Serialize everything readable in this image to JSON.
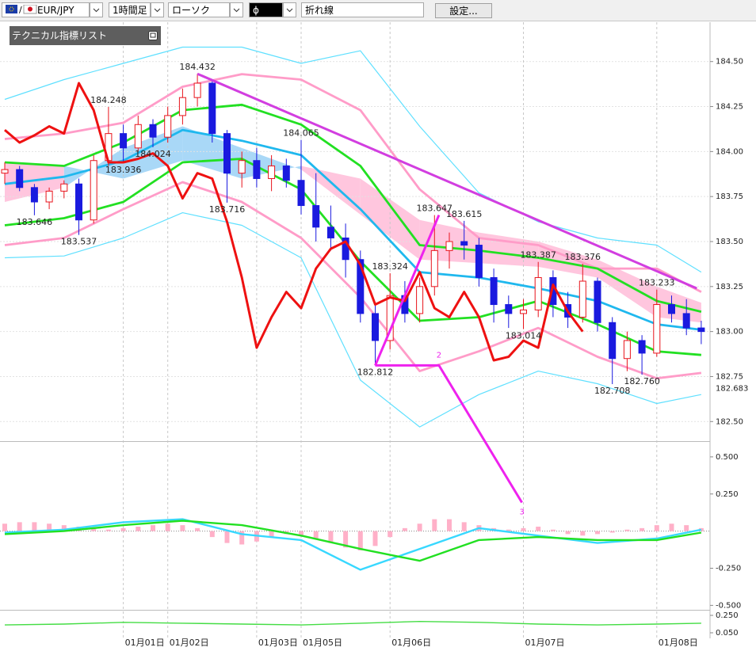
{
  "toolbar": {
    "symbol": "EUR/JPY",
    "timeframe": "1時間足",
    "chart_type": "ローソク",
    "drawing_tool": "ϕ",
    "line_type": "折れ線",
    "settings_button": "設定..."
  },
  "indicator_panel": {
    "title": "テクニカル指標リスト"
  },
  "chart_data": [
    {
      "type": "candlestick",
      "categories": [
        null,
        null,
        null,
        null,
        null,
        null,
        null,
        null,
        "01月01日",
        null,
        null,
        "01月02日",
        null,
        null,
        null,
        null,
        null,
        "01月03日",
        null,
        null,
        "01月05日",
        null,
        null,
        null,
        null,
        null,
        "01月06日",
        null,
        null,
        null,
        null,
        null,
        null,
        null,
        null,
        "01月07日",
        null,
        null,
        null,
        null,
        null,
        null,
        null,
        null,
        "01月08日",
        null,
        null,
        null
      ],
      "candles": [
        [
          183.88,
          183.94,
          183.82,
          183.9
        ],
        [
          183.9,
          183.92,
          183.78,
          183.8
        ],
        [
          183.8,
          183.82,
          183.646,
          183.72
        ],
        [
          183.72,
          183.8,
          183.68,
          183.78
        ],
        [
          183.78,
          183.84,
          183.74,
          183.82
        ],
        [
          183.82,
          183.85,
          183.537,
          183.62
        ],
        [
          183.62,
          183.98,
          183.6,
          183.95
        ],
        [
          183.95,
          184.248,
          183.92,
          184.1
        ],
        [
          184.1,
          184.15,
          183.936,
          184.02
        ],
        [
          184.02,
          184.2,
          184.0,
          184.15
        ],
        [
          184.15,
          184.18,
          184.024,
          184.08
        ],
        [
          184.08,
          184.25,
          184.05,
          184.2
        ],
        [
          184.2,
          184.35,
          184.15,
          184.3
        ],
        [
          184.3,
          184.432,
          184.25,
          184.38
        ],
        [
          184.38,
          184.4,
          184.05,
          184.1
        ],
        [
          184.1,
          184.12,
          183.716,
          183.88
        ],
        [
          183.88,
          184.0,
          183.8,
          183.95
        ],
        [
          183.95,
          184.02,
          183.8,
          183.85
        ],
        [
          183.85,
          183.98,
          183.78,
          183.92
        ],
        [
          183.92,
          183.96,
          183.8,
          183.84
        ],
        [
          183.84,
          184.065,
          183.65,
          183.7
        ],
        [
          183.7,
          183.88,
          183.5,
          183.58
        ],
        [
          183.58,
          183.7,
          183.45,
          183.52
        ],
        [
          183.52,
          183.6,
          183.3,
          183.4
        ],
        [
          183.4,
          183.45,
          183.05,
          183.1
        ],
        [
          183.1,
          183.15,
          182.812,
          182.95
        ],
        [
          182.95,
          183.324,
          182.9,
          183.2
        ],
        [
          183.2,
          183.28,
          183.05,
          183.1
        ],
        [
          183.1,
          183.3,
          183.05,
          183.25
        ],
        [
          183.25,
          183.647,
          183.2,
          183.45
        ],
        [
          183.45,
          183.55,
          183.35,
          183.5
        ],
        [
          183.5,
          183.615,
          183.4,
          183.48
        ],
        [
          183.48,
          183.52,
          183.25,
          183.3
        ],
        [
          183.3,
          183.35,
          183.05,
          183.15
        ],
        [
          183.15,
          183.2,
          183.02,
          183.1
        ],
        [
          183.1,
          183.18,
          183.014,
          183.12
        ],
        [
          183.12,
          183.387,
          183.08,
          183.3
        ],
        [
          183.3,
          183.34,
          183.08,
          183.15
        ],
        [
          183.15,
          183.22,
          183.02,
          183.08
        ],
        [
          183.08,
          183.376,
          183.05,
          183.28
        ],
        [
          183.28,
          183.3,
          183.0,
          183.05
        ],
        [
          183.05,
          183.08,
          182.708,
          182.85
        ],
        [
          182.85,
          183.0,
          182.78,
          182.95
        ],
        [
          182.95,
          182.98,
          182.76,
          182.88
        ],
        [
          182.88,
          183.233,
          182.86,
          183.15
        ],
        [
          183.15,
          183.2,
          183.05,
          183.1
        ],
        [
          183.1,
          183.18,
          182.98,
          183.02
        ],
        [
          183.02,
          183.06,
          182.93,
          183.0
        ]
      ],
      "up_color": "#e8141c",
      "down_color": "#1a1adf",
      "ylim": [
        182.4,
        184.71
      ],
      "yticks": [
        {
          "value": 184.5,
          "label": "184.50"
        },
        {
          "value": 184.25,
          "label": "184.25"
        },
        {
          "value": 184,
          "label": "184.00"
        },
        {
          "value": 183.75,
          "label": "183.75"
        },
        {
          "value": 183.5,
          "label": "183.50"
        },
        {
          "value": 183.25,
          "label": "183.25"
        },
        {
          "value": 183,
          "label": "183.00"
        },
        {
          "value": 182.75,
          "label": "182.75"
        },
        {
          "value": 182.5,
          "label": "182.50"
        }
      ],
      "price_marker": 182.683,
      "grid": true,
      "cloud": {
        "x": [
          0,
          4,
          8,
          12,
          16,
          20,
          24,
          28,
          32,
          36,
          40,
          44,
          47
        ],
        "span_a": [
          183.72,
          183.8,
          184.02,
          184.14,
          184.02,
          183.9,
          183.65,
          183.4,
          183.38,
          183.36,
          183.3,
          183.08,
          183.05
        ],
        "span_b": [
          183.94,
          183.92,
          183.85,
          183.95,
          183.85,
          183.92,
          183.85,
          183.62,
          183.55,
          183.5,
          183.4,
          183.25,
          183.16
        ],
        "colors": [
          "#a9d8f7",
          "#ffc6de"
        ]
      },
      "overlays": [
        {
          "color": "#5fe0ff",
          "x": [
            0,
            4,
            8,
            12,
            16,
            20,
            24,
            28,
            32,
            36,
            40,
            44,
            47
          ],
          "values": [
            184.29,
            184.4,
            184.49,
            184.58,
            184.58,
            184.49,
            184.56,
            184.14,
            183.77,
            183.61,
            183.52,
            183.48,
            183.33
          ]
        },
        {
          "color": "#ff9cc8",
          "x": [
            0,
            4,
            8,
            12,
            16,
            20,
            24,
            28,
            32,
            36,
            40,
            44,
            47
          ],
          "values": [
            184.07,
            184.1,
            184.16,
            184.36,
            184.43,
            184.4,
            184.23,
            183.79,
            183.52,
            183.48,
            183.35,
            183.35,
            183.22
          ]
        },
        {
          "color": "#22e022",
          "x": [
            0,
            4,
            8,
            12,
            16,
            20,
            24,
            28,
            32,
            36,
            40,
            44,
            47
          ],
          "values": [
            183.94,
            183.92,
            184.05,
            184.23,
            184.26,
            184.15,
            183.92,
            183.48,
            183.45,
            183.41,
            183.35,
            183.17,
            183.11
          ]
        },
        {
          "color": "#1fb8ee",
          "x": [
            0,
            4,
            8,
            12,
            16,
            20,
            24,
            28,
            32,
            36,
            40,
            44,
            47
          ],
          "values": [
            183.82,
            183.86,
            183.95,
            184.12,
            184.06,
            183.98,
            183.68,
            183.33,
            183.3,
            183.24,
            183.17,
            183.04,
            183.01
          ]
        },
        {
          "color": "#22e022",
          "x": [
            0,
            4,
            8,
            12,
            16,
            20,
            24,
            28,
            32,
            36,
            40,
            44,
            47
          ],
          "values": [
            183.59,
            183.63,
            183.72,
            183.94,
            183.96,
            183.79,
            183.39,
            183.06,
            183.08,
            183.17,
            183.04,
            182.89,
            182.87
          ]
        },
        {
          "color": "#ff9cc8",
          "x": [
            0,
            4,
            8,
            12,
            16,
            20,
            24,
            28,
            32,
            36,
            40,
            44,
            47
          ],
          "values": [
            183.48,
            183.52,
            183.68,
            183.83,
            183.72,
            183.52,
            183.19,
            182.78,
            182.89,
            183.02,
            182.86,
            182.74,
            182.77
          ]
        },
        {
          "color": "#5fe0ff",
          "x": [
            0,
            4,
            8,
            12,
            16,
            20,
            24,
            28,
            32,
            36,
            40,
            44,
            47
          ],
          "values": [
            183.41,
            183.42,
            183.52,
            183.66,
            183.59,
            183.41,
            182.73,
            182.47,
            182.65,
            182.78,
            182.71,
            182.6,
            182.65
          ]
        }
      ],
      "lagging_line": {
        "color": "#ee1111",
        "values": [
          184.12,
          184.05,
          184.09,
          184.14,
          184.1,
          184.38,
          184.23,
          183.94,
          183.94,
          183.96,
          183.99,
          183.92,
          183.74,
          183.88,
          183.85,
          183.61,
          183.3,
          182.91,
          183.08,
          183.22,
          183.13,
          183.35,
          183.46,
          183.5,
          183.37,
          183.15,
          183.19,
          183.17,
          183.33,
          183.13,
          183.08,
          183.22,
          183.08,
          182.84,
          182.86,
          182.95,
          182.91,
          183.26,
          183.11,
          183.0,
          null,
          null,
          null,
          null,
          null,
          null,
          null,
          null
        ]
      },
      "annotations": [
        {
          "value": 184.432,
          "label": "184.432"
        },
        {
          "value": 184.248,
          "label": "184.248"
        },
        {
          "value": 183.936,
          "label": "183.936"
        },
        {
          "value": 184.024,
          "label": "184.024"
        },
        {
          "value": 183.646,
          "label": "183.646"
        },
        {
          "value": 183.537,
          "label": "183.537"
        },
        {
          "value": 183.716,
          "label": "183.716"
        },
        {
          "value": 184.065,
          "label": "184.065"
        },
        {
          "value": 182.812,
          "label": "182.812"
        },
        {
          "value": 183.324,
          "label": "183.324"
        },
        {
          "value": 183.647,
          "label": "183.647"
        },
        {
          "value": 183.615,
          "label": "183.615"
        },
        {
          "value": 183.014,
          "label": "183.014"
        },
        {
          "value": 183.387,
          "label": "183.387"
        },
        {
          "value": 183.376,
          "label": "183.376"
        },
        {
          "value": 182.708,
          "label": "182.708"
        },
        {
          "value": 182.76,
          "label": "182.760"
        },
        {
          "value": 183.233,
          "label": "183.233"
        }
      ],
      "drawings": [
        {
          "color": "#d23ee0",
          "x": [
            13,
            46.7
          ],
          "values": [
            184.432,
            183.24
          ]
        },
        {
          "color": "#ee22ee",
          "x": [
            25,
            29.3
          ],
          "values": [
            182.812,
            183.647
          ]
        },
        {
          "color": "#ee22ee",
          "x": [
            25,
            29.3,
            34.9
          ],
          "values": [
            182.812,
            182.812,
            182.05
          ],
          "point_labels": [
            null,
            "2",
            "3"
          ]
        }
      ]
    },
    {
      "type": "macd",
      "histogram": {
        "color": "#ffb0c8",
        "values": [
          0.05,
          0.06,
          0.06,
          0.05,
          0.04,
          0.03,
          0.02,
          0.01,
          0.02,
          0.03,
          0.04,
          0.05,
          0.04,
          0.02,
          -0.04,
          -0.08,
          -0.09,
          -0.07,
          -0.04,
          -0.02,
          -0.03,
          -0.05,
          -0.08,
          -0.11,
          -0.13,
          -0.1,
          -0.04,
          0.02,
          0.05,
          0.08,
          0.08,
          0.06,
          0.04,
          0.02,
          0.01,
          0.02,
          0.03,
          0.01,
          -0.02,
          -0.03,
          -0.02,
          -0.01,
          0.01,
          0.02,
          0.04,
          0.05,
          0.04,
          0.02
        ]
      },
      "lines": [
        {
          "color": "#38d8ff",
          "x": [
            0,
            4,
            8,
            12,
            16,
            20,
            24,
            28,
            32,
            36,
            40,
            44,
            47
          ],
          "values": [
            -0.01,
            0.01,
            0.06,
            0.08,
            -0.02,
            -0.06,
            -0.26,
            -0.12,
            0.02,
            -0.03,
            -0.08,
            -0.05,
            0.01
          ]
        },
        {
          "color": "#22e022",
          "x": [
            0,
            4,
            8,
            12,
            16,
            20,
            24,
            28,
            32,
            36,
            40,
            44,
            47
          ],
          "values": [
            -0.02,
            0.0,
            0.04,
            0.07,
            0.04,
            -0.03,
            -0.12,
            -0.2,
            -0.06,
            -0.04,
            -0.06,
            -0.06,
            -0.01
          ]
        }
      ],
      "ylim": [
        -0.53,
        0.59
      ],
      "yticks": [
        {
          "value": 0.5,
          "label": "0.500"
        },
        {
          "value": 0.25,
          "label": "0.250"
        },
        {
          "value": -0.25,
          "label": "-0.250"
        },
        {
          "value": -0.5,
          "label": "-0.500"
        }
      ]
    },
    {
      "type": "line",
      "lines": [
        {
          "color": "#44dd44",
          "x": [
            0,
            4,
            8,
            12,
            16,
            20,
            24,
            28,
            32,
            36,
            40,
            44,
            47
          ],
          "values": [
            0.14,
            0.15,
            0.17,
            0.16,
            0.15,
            0.14,
            0.16,
            0.18,
            0.17,
            0.15,
            0.14,
            0.15,
            0.16
          ]
        }
      ],
      "ylim": [
        0,
        0.3
      ],
      "yticks": [
        {
          "value": 0.25,
          "label": "0.250"
        },
        {
          "value": 0.05,
          "label": "0.050"
        }
      ]
    }
  ]
}
